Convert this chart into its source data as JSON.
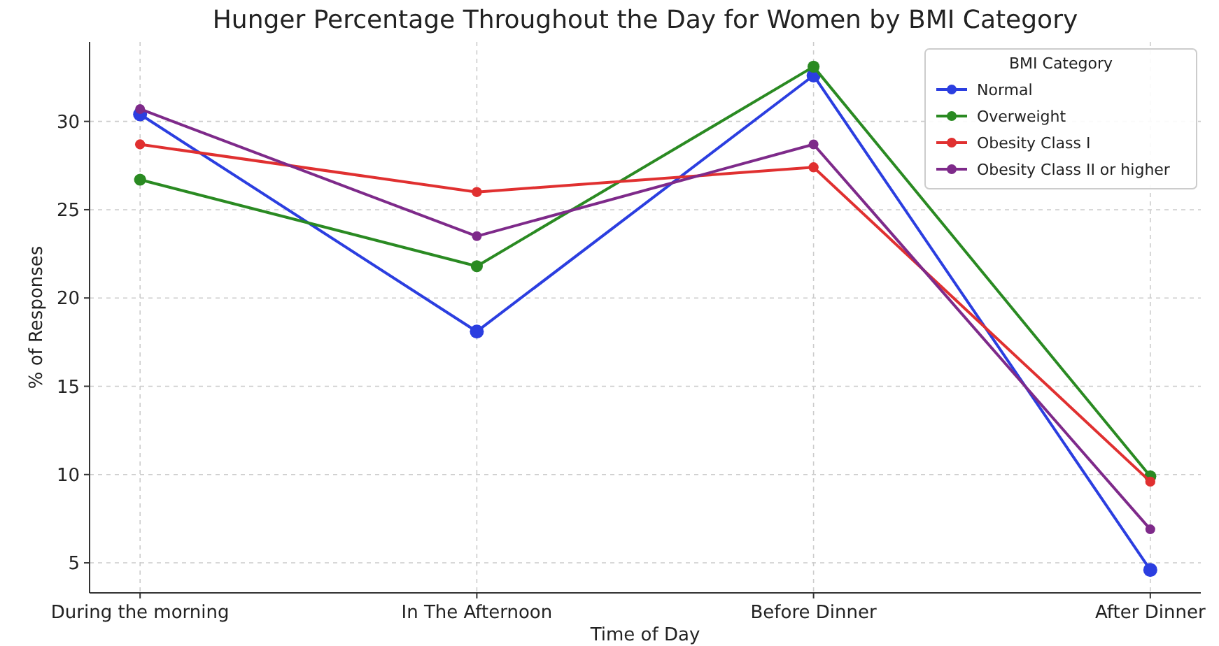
{
  "chart_data": {
    "type": "line",
    "title": "Hunger Percentage Throughout the Day for Women by BMI Category",
    "xlabel": "Time of Day",
    "ylabel": "% of Responses",
    "legend_title": "BMI Category",
    "categories": [
      "During the morning",
      "In The Afternoon",
      "Before Dinner",
      "After Dinner"
    ],
    "series": [
      {
        "name": "Normal",
        "color": "#2b3ee0",
        "values": [
          30.4,
          18.1,
          32.6,
          4.6
        ]
      },
      {
        "name": "Overweight",
        "color": "#2a8a22",
        "values": [
          26.7,
          21.8,
          33.1,
          9.9
        ]
      },
      {
        "name": "Obesity Class I",
        "color": "#e03030",
        "values": [
          28.7,
          26.0,
          27.4,
          9.6
        ]
      },
      {
        "name": "Obesity Class II or higher",
        "color": "#7e2a8a",
        "values": [
          30.7,
          23.5,
          28.7,
          6.9
        ]
      }
    ],
    "ylim": [
      3.3,
      34.5
    ],
    "yticks": [
      5,
      10,
      15,
      20,
      25,
      30
    ],
    "grid": true,
    "legend": "top right",
    "marker": "circle",
    "line_style": "solid"
  }
}
